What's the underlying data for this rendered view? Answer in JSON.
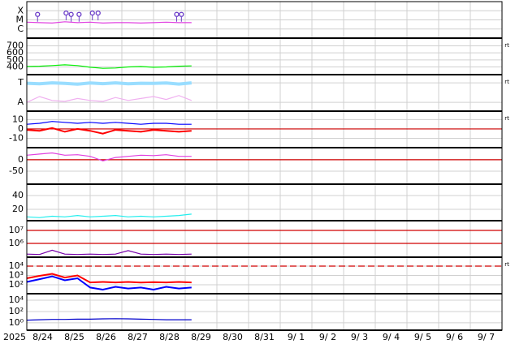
{
  "chart_data": [
    {
      "type": "line",
      "xlim": [
        0,
        15
      ],
      "ylim": [
        0,
        4
      ],
      "yticks": [
        {
          "value": 3,
          "label": "X"
        },
        {
          "value": 2,
          "label": "M"
        },
        {
          "value": 1,
          "label": "C"
        }
      ],
      "x": [
        0,
        0.4,
        0.8,
        1.2,
        1.6,
        2.0,
        2.4,
        2.8,
        3.2,
        3.6,
        4.0,
        4.4,
        4.8,
        5.2
      ],
      "series": [
        {
          "color": "#e040e0",
          "values": [
            1.75,
            1.7,
            1.65,
            1.8,
            1.7,
            1.75,
            1.65,
            1.7,
            1.7,
            1.65,
            1.7,
            1.75,
            1.7,
            1.7
          ]
        },
        {
          "color": "#6a3cc8",
          "marker": "o",
          "x": [
            0.34,
            1.24,
            1.4,
            1.65,
            2.07,
            2.25,
            4.73,
            4.88
          ],
          "values": [
            2.6,
            2.75,
            2.6,
            2.6,
            2.75,
            2.75,
            2.6,
            2.6
          ]
        }
      ]
    },
    {
      "type": "line",
      "xlim": [
        0,
        15
      ],
      "ylim": [
        290,
        810
      ],
      "yticks": [
        700,
        600,
        500,
        400
      ],
      "side_label": "rt",
      "x": [
        0,
        0.4,
        0.8,
        1.2,
        1.6,
        2.0,
        2.4,
        2.8,
        3.2,
        3.6,
        4.0,
        4.4,
        4.8,
        5.2
      ],
      "series": [
        {
          "color": "#00ee00",
          "values": [
            405,
            410,
            420,
            430,
            420,
            395,
            380,
            385,
            400,
            405,
            395,
            400,
            410,
            415
          ]
        }
      ]
    },
    {
      "type": "line",
      "xlim": [
        0,
        15
      ],
      "ylim": [
        -0.45,
        1.42
      ],
      "side_label": "rt",
      "yticks": [
        {
          "value": 1,
          "label": "T"
        },
        {
          "value": 0,
          "label": "A"
        }
      ],
      "x": [
        0,
        0.4,
        0.8,
        1.2,
        1.6,
        2.0,
        2.4,
        2.8,
        3.2,
        3.6,
        4.0,
        4.4,
        4.8,
        5.2
      ],
      "series": [
        {
          "color": "#f0b0f0",
          "values": [
            0.0,
            0.3,
            0.1,
            0.05,
            0.2,
            0.1,
            0.05,
            0.25,
            0.1,
            0.2,
            0.3,
            0.15,
            0.35,
            0.1
          ]
        },
        {
          "color": "#99ddff",
          "width": 4,
          "values": [
            0.98,
            0.95,
            1.0,
            0.97,
            0.93,
            0.99,
            0.96,
            1.0,
            0.95,
            0.98,
            0.97,
            0.99,
            0.94,
            1.0
          ]
        }
      ]
    },
    {
      "type": "line",
      "xlim": [
        0,
        15
      ],
      "ylim": [
        -20,
        19
      ],
      "yticks": [
        10,
        0,
        -10
      ],
      "side_label": "rt",
      "hlines": [
        {
          "value": 0,
          "color": "#d00000"
        }
      ],
      "x": [
        0,
        0.4,
        0.8,
        1.2,
        1.6,
        2.0,
        2.4,
        2.8,
        3.2,
        3.6,
        4.0,
        4.4,
        4.8,
        5.2
      ],
      "series": [
        {
          "color": "#0000ff",
          "values": [
            5,
            6,
            8,
            7,
            6,
            7,
            6,
            7,
            6,
            5,
            6,
            6,
            5,
            5
          ]
        },
        {
          "color": "#ff0000",
          "width": 2,
          "values": [
            -1,
            -2,
            1,
            -3,
            0,
            -2,
            -5,
            -1,
            -2,
            -3,
            -1,
            -2,
            -3,
            -2
          ]
        }
      ]
    },
    {
      "type": "line",
      "xlim": [
        0,
        15
      ],
      "ylim": [
        -107,
        53
      ],
      "yticks": [
        0,
        -50
      ],
      "hlines": [
        {
          "value": 0,
          "color": "#d00000"
        }
      ],
      "x": [
        0,
        0.4,
        0.8,
        1.2,
        1.6,
        2.0,
        2.4,
        2.8,
        3.2,
        3.6,
        4.0,
        4.4,
        4.8,
        5.2
      ],
      "series": [
        {
          "color": "#e040e0",
          "values": [
            20,
            25,
            30,
            20,
            22,
            15,
            -5,
            10,
            15,
            20,
            18,
            22,
            15,
            15
          ]
        }
      ]
    },
    {
      "type": "line",
      "xlim": [
        0,
        15
      ],
      "ylim": [
        3.5,
        56.5
      ],
      "yticks": [
        40,
        20
      ],
      "x": [
        0,
        0.4,
        0.8,
        1.2,
        1.6,
        2.0,
        2.4,
        2.8,
        3.2,
        3.6,
        4.0,
        4.4,
        4.8,
        5.2
      ],
      "series": [
        {
          "color": "#22eeee",
          "values": [
            9,
            8,
            10,
            9,
            11,
            9,
            10,
            11,
            9,
            10,
            9,
            10,
            11,
            13
          ]
        }
      ]
    },
    {
      "type": "line",
      "log": true,
      "xlim": [
        0,
        15
      ],
      "ylim": [
        87000,
        56000000
      ],
      "yticks": [
        {
          "value": 10000000,
          "label": "10⁷"
        },
        {
          "value": 1000000,
          "label": "10⁶"
        }
      ],
      "hlines": [
        {
          "value": 10000000,
          "color": "#d00000"
        },
        {
          "value": 1000000,
          "color": "#d00000"
        }
      ],
      "x": [
        0,
        0.4,
        0.8,
        1.2,
        1.6,
        2.0,
        2.4,
        2.8,
        3.2,
        3.6,
        4.0,
        4.4,
        4.8,
        5.2
      ],
      "series": [
        {
          "color": "#7700aa",
          "values": [
            150000,
            140000,
            300000,
            150000,
            140000,
            150000,
            140000,
            150000,
            280000,
            150000,
            140000,
            150000,
            140000,
            150000
          ]
        }
      ]
    },
    {
      "type": "line",
      "log": true,
      "xlim": [
        0,
        15
      ],
      "ylim": [
        11,
        91000
      ],
      "side_label": "rt",
      "yticks": [
        {
          "value": 10000,
          "label": "10⁴"
        },
        {
          "value": 1000,
          "label": "10³"
        },
        {
          "value": 100,
          "label": "10²"
        }
      ],
      "hlines": [
        {
          "value": 10000,
          "color": "#d00000",
          "dashed": true
        }
      ],
      "x": [
        0,
        0.4,
        0.8,
        1.2,
        1.6,
        2.0,
        2.4,
        2.8,
        3.2,
        3.6,
        4.0,
        4.4,
        4.8,
        5.2
      ],
      "series": [
        {
          "color": "#0000ff",
          "width": 2,
          "values": [
            200,
            400,
            800,
            300,
            500,
            50,
            30,
            60,
            40,
            50,
            30,
            60,
            40,
            50
          ]
        },
        {
          "color": "#ff0000",
          "width": 2,
          "values": [
            500,
            900,
            1500,
            600,
            1000,
            180,
            200,
            180,
            200,
            170,
            190,
            180,
            200,
            180
          ]
        }
      ]
    },
    {
      "type": "line",
      "log": true,
      "xlim": [
        0,
        15
      ],
      "ylim": [
        0.05,
        140000
      ],
      "yticks": [
        {
          "value": 10000,
          "label": "10⁴"
        },
        {
          "value": 100,
          "label": "10²"
        },
        {
          "value": 1,
          "label": "10⁰"
        }
      ],
      "year_label": "2025",
      "xticks": [
        {
          "value": 0,
          "label": "8/24"
        },
        {
          "value": 1,
          "label": "8/25"
        },
        {
          "value": 2,
          "label": "8/26"
        },
        {
          "value": 3,
          "label": "8/27"
        },
        {
          "value": 4,
          "label": "8/28"
        },
        {
          "value": 5,
          "label": "8/29"
        },
        {
          "value": 6,
          "label": "8/30"
        },
        {
          "value": 7,
          "label": "8/31"
        },
        {
          "value": 8,
          "label": "9/ 1"
        },
        {
          "value": 9,
          "label": "9/ 2"
        },
        {
          "value": 10,
          "label": "9/ 3"
        },
        {
          "value": 11,
          "label": "9/ 4"
        },
        {
          "value": 12,
          "label": "9/ 5"
        },
        {
          "value": 13,
          "label": "9/ 6"
        },
        {
          "value": 14,
          "label": "9/ 7"
        }
      ],
      "x": [
        0,
        0.4,
        0.8,
        1.2,
        1.6,
        2.0,
        2.4,
        2.8,
        3.2,
        3.6,
        4.0,
        4.4,
        4.8,
        5.2
      ],
      "series": [
        {
          "color": "#0000cc",
          "values": [
            3,
            3.5,
            4,
            4,
            4.5,
            4.5,
            5,
            5.5,
            5,
            4.5,
            4,
            3.5,
            3.5,
            3.5
          ]
        }
      ]
    }
  ]
}
